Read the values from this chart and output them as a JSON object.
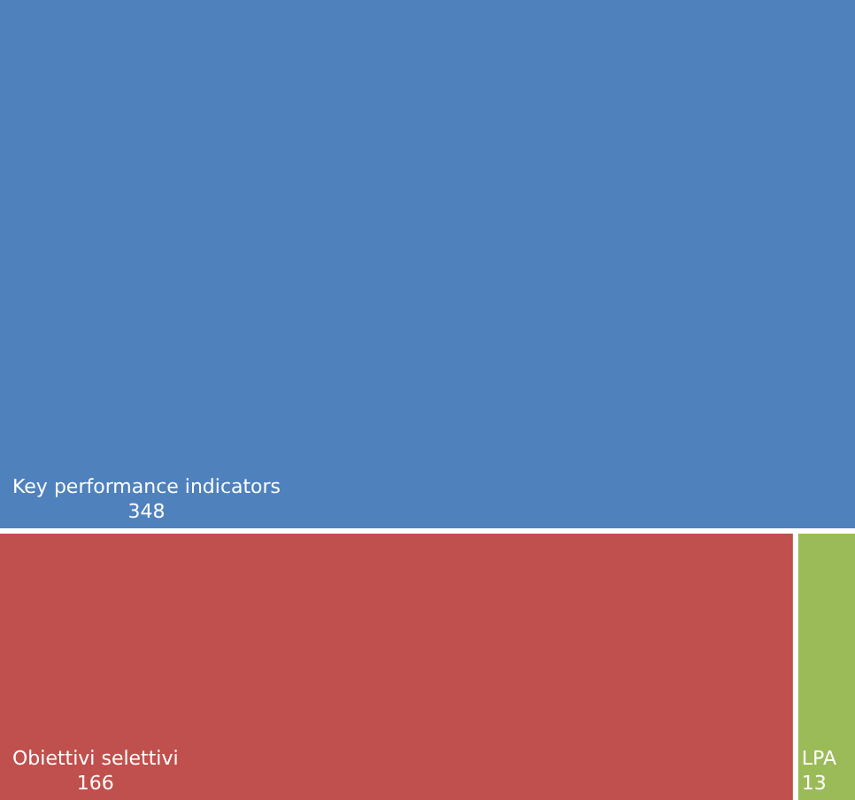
{
  "chart_data": {
    "type": "other",
    "categories": [
      "Key performance indicators",
      "Obiettivi selettivi",
      "LPA"
    ],
    "values": [
      348,
      166,
      13
    ],
    "colors": [
      "#4f81bd",
      "#c0504d",
      "#9bbb59"
    ],
    "data_labels": true
  }
}
